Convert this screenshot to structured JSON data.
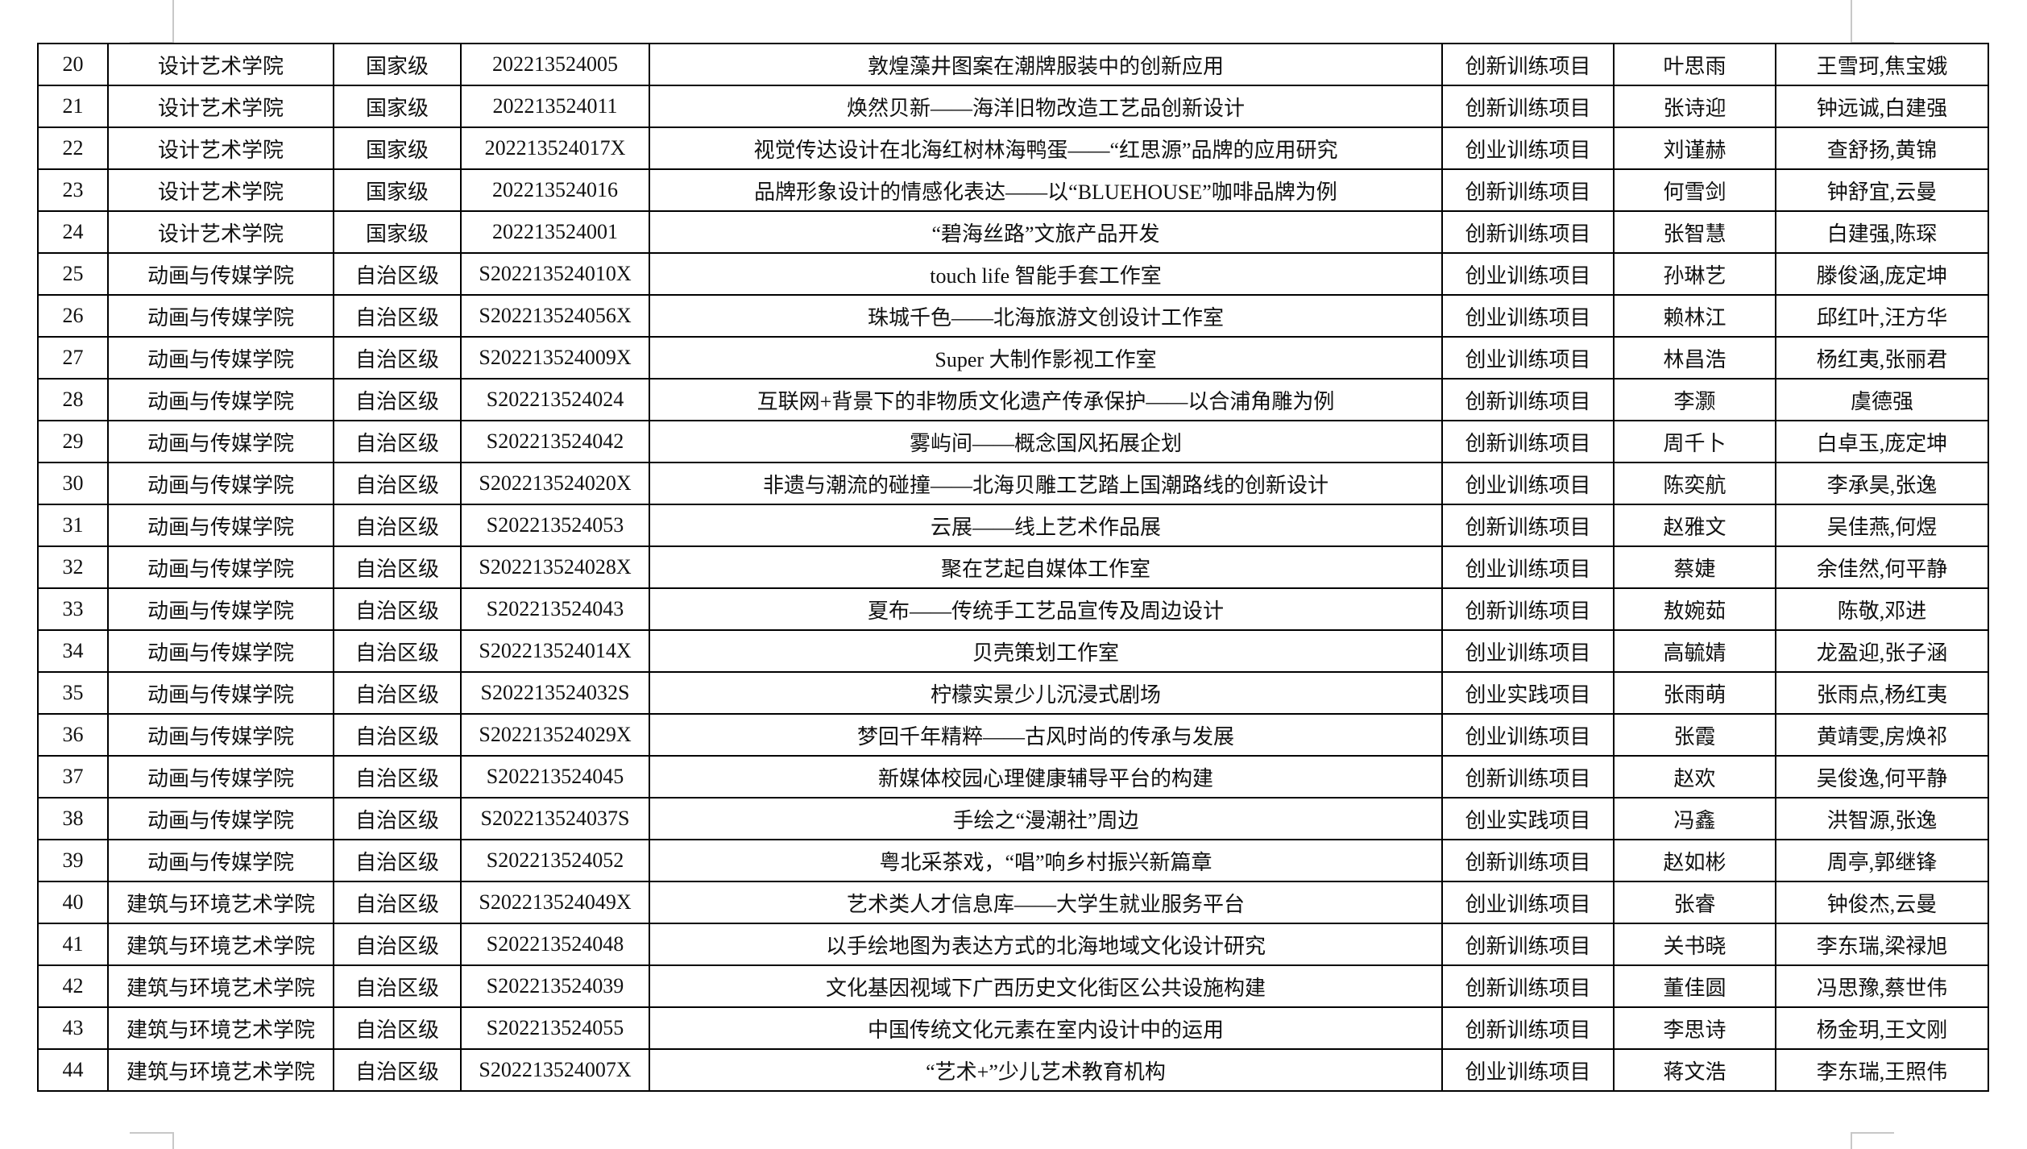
{
  "rows": [
    [
      "20",
      "设计艺术学院",
      "国家级",
      "202213524005",
      "敦煌藻井图案在潮牌服装中的创新应用",
      "创新训练项目",
      "叶思雨",
      "王雪珂,焦宝娥"
    ],
    [
      "21",
      "设计艺术学院",
      "国家级",
      "202213524011",
      "焕然贝新——海洋旧物改造工艺品创新设计",
      "创新训练项目",
      "张诗迎",
      "钟远诚,白建强"
    ],
    [
      "22",
      "设计艺术学院",
      "国家级",
      "202213524017X",
      "视觉传达设计在北海红树林海鸭蛋——“红思源”品牌的应用研究",
      "创业训练项目",
      "刘谨赫",
      "查舒扬,黄锦"
    ],
    [
      "23",
      "设计艺术学院",
      "国家级",
      "202213524016",
      "品牌形象设计的情感化表达——以“BLUEHOUSE”咖啡品牌为例",
      "创新训练项目",
      "何雪剑",
      "钟舒宜,云曼"
    ],
    [
      "24",
      "设计艺术学院",
      "国家级",
      "202213524001",
      "“碧海丝路”文旅产品开发",
      "创新训练项目",
      "张智慧",
      "白建强,陈琛"
    ],
    [
      "25",
      "动画与传媒学院",
      "自治区级",
      "S202213524010X",
      "touch life 智能手套工作室",
      "创业训练项目",
      "孙琳艺",
      "滕俊涵,庞定坤"
    ],
    [
      "26",
      "动画与传媒学院",
      "自治区级",
      "S202213524056X",
      "珠城千色——北海旅游文创设计工作室",
      "创业训练项目",
      "赖林江",
      "邱红叶,汪方华"
    ],
    [
      "27",
      "动画与传媒学院",
      "自治区级",
      "S202213524009X",
      "Super 大制作影视工作室",
      "创业训练项目",
      "林昌浩",
      "杨红夷,张丽君"
    ],
    [
      "28",
      "动画与传媒学院",
      "自治区级",
      "S202213524024",
      "互联网+背景下的非物质文化遗产传承保护——以合浦角雕为例",
      "创新训练项目",
      "李灏",
      "虞德强"
    ],
    [
      "29",
      "动画与传媒学院",
      "自治区级",
      "S202213524042",
      "雾屿间——概念国风拓展企划",
      "创新训练项目",
      "周千卜",
      "白卓玉,庞定坤"
    ],
    [
      "30",
      "动画与传媒学院",
      "自治区级",
      "S202213524020X",
      "非遗与潮流的碰撞——北海贝雕工艺踏上国潮路线的创新设计",
      "创业训练项目",
      "陈奕航",
      "李承昊,张逸"
    ],
    [
      "31",
      "动画与传媒学院",
      "自治区级",
      "S202213524053",
      "云展——线上艺术作品展",
      "创新训练项目",
      "赵雅文",
      "吴佳燕,何煜"
    ],
    [
      "32",
      "动画与传媒学院",
      "自治区级",
      "S202213524028X",
      "聚在艺起自媒体工作室",
      "创业训练项目",
      "蔡婕",
      "余佳然,何平静"
    ],
    [
      "33",
      "动画与传媒学院",
      "自治区级",
      "S202213524043",
      "夏布——传统手工艺品宣传及周边设计",
      "创新训练项目",
      "敖婉茹",
      "陈敬,邓进"
    ],
    [
      "34",
      "动画与传媒学院",
      "自治区级",
      "S202213524014X",
      "贝壳策划工作室",
      "创业训练项目",
      "高毓婧",
      "龙盈迎,张子涵"
    ],
    [
      "35",
      "动画与传媒学院",
      "自治区级",
      "S202213524032S",
      "柠檬实景少儿沉浸式剧场",
      "创业实践项目",
      "张雨萌",
      "张雨点,杨红夷"
    ],
    [
      "36",
      "动画与传媒学院",
      "自治区级",
      "S202213524029X",
      "梦回千年精粹——古风时尚的传承与发展",
      "创业训练项目",
      "张霞",
      "黄靖雯,房焕祁"
    ],
    [
      "37",
      "动画与传媒学院",
      "自治区级",
      "S202213524045",
      "新媒体校园心理健康辅导平台的构建",
      "创新训练项目",
      "赵欢",
      "吴俊逸,何平静"
    ],
    [
      "38",
      "动画与传媒学院",
      "自治区级",
      "S202213524037S",
      "手绘之“漫潮社”周边",
      "创业实践项目",
      "冯鑫",
      "洪智源,张逸"
    ],
    [
      "39",
      "动画与传媒学院",
      "自治区级",
      "S202213524052",
      "粤北采茶戏，“唱”响乡村振兴新篇章",
      "创新训练项目",
      "赵如彬",
      "周亭,郭继锋"
    ],
    [
      "40",
      "建筑与环境艺术学院",
      "自治区级",
      "S202213524049X",
      "艺术类人才信息库——大学生就业服务平台",
      "创业训练项目",
      "张睿",
      "钟俊杰,云曼"
    ],
    [
      "41",
      "建筑与环境艺术学院",
      "自治区级",
      "S202213524048",
      "以手绘地图为表达方式的北海地域文化设计研究",
      "创新训练项目",
      "关书晓",
      "李东瑞,梁禄旭"
    ],
    [
      "42",
      "建筑与环境艺术学院",
      "自治区级",
      "S202213524039",
      "文化基因视域下广西历史文化街区公共设施构建",
      "创新训练项目",
      "董佳圆",
      "冯思豫,蔡世伟"
    ],
    [
      "43",
      "建筑与环境艺术学院",
      "自治区级",
      "S202213524055",
      "中国传统文化元素在室内设计中的运用",
      "创新训练项目",
      "李思诗",
      "杨金玥,王文刚"
    ],
    [
      "44",
      "建筑与环境艺术学院",
      "自治区级",
      "S202213524007X",
      "“艺术+”少儿艺术教育机构",
      "创业训练项目",
      "蒋文浩",
      "李东瑞,王照伟"
    ]
  ]
}
